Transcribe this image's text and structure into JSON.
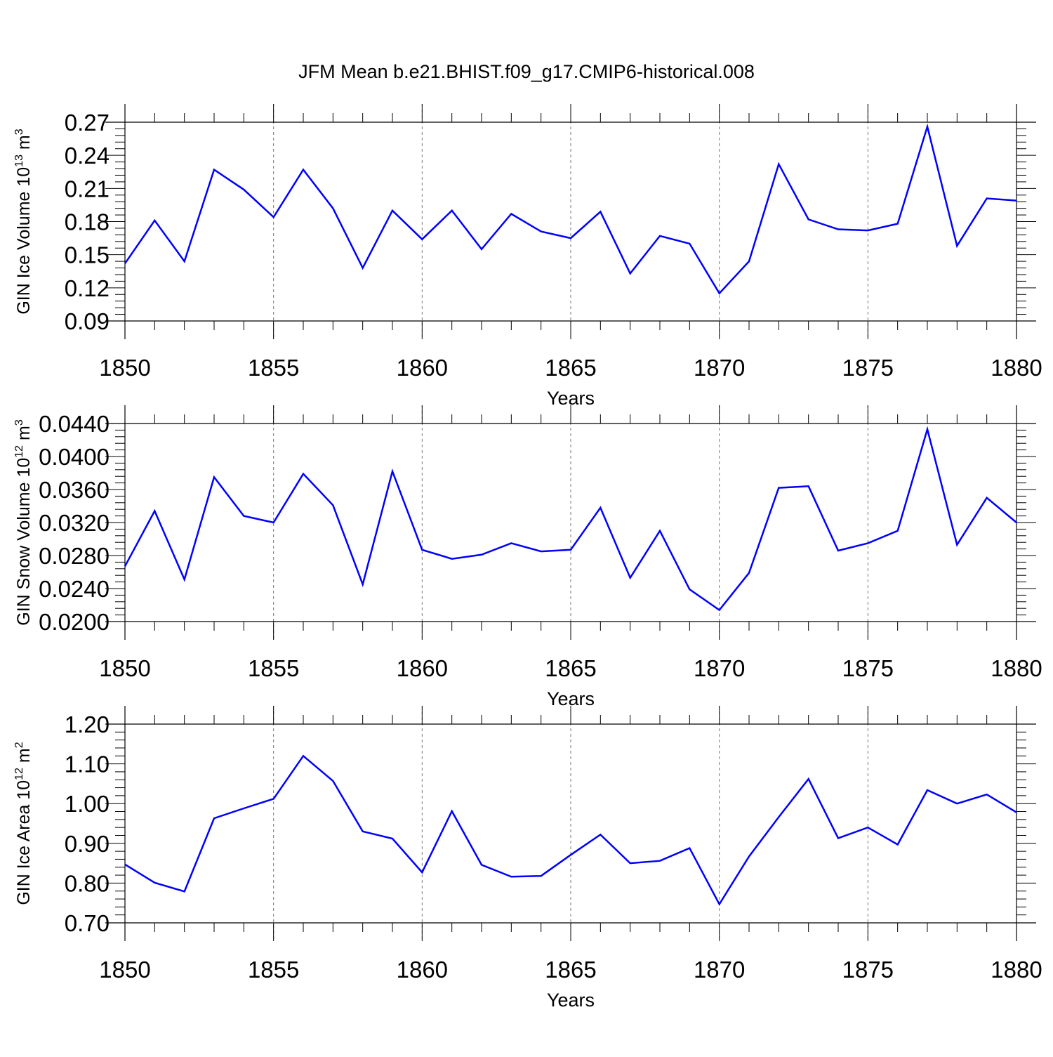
{
  "title": "JFM Mean b.e21.BHIST.f09_g17.CMIP6-historical.008",
  "line_color": "#0000ff",
  "chart_data": [
    {
      "type": "line",
      "ylabel": "GIN Ice Volume 10^13 m^3",
      "ylabel_main": "GIN Ice Volume 10",
      "ylabel_exp": "13",
      "ylabel_unit": " m",
      "ylabel_unit_exp": "3",
      "xlabel": "Years",
      "xlim": [
        1850,
        1880
      ],
      "ylim": [
        0.09,
        0.27
      ],
      "x_ticks": [
        "1850",
        "1855",
        "1860",
        "1865",
        "1870",
        "1875",
        "1880"
      ],
      "y_ticks": [
        "0.09",
        "0.12",
        "0.15",
        "0.18",
        "0.21",
        "0.24",
        "0.27"
      ],
      "grid": "vertical dashed at major x ticks",
      "x": [
        1850,
        1851,
        1852,
        1853,
        1854,
        1855,
        1856,
        1857,
        1858,
        1859,
        1860,
        1861,
        1862,
        1863,
        1864,
        1865,
        1866,
        1867,
        1868,
        1869,
        1870,
        1871,
        1872,
        1873,
        1874,
        1875,
        1876,
        1877,
        1878,
        1879,
        1880
      ],
      "values": [
        0.142,
        0.181,
        0.144,
        0.227,
        0.209,
        0.184,
        0.227,
        0.192,
        0.138,
        0.19,
        0.164,
        0.19,
        0.155,
        0.187,
        0.171,
        0.165,
        0.189,
        0.133,
        0.167,
        0.16,
        0.115,
        0.144,
        0.232,
        0.182,
        0.173,
        0.172,
        0.178,
        0.266,
        0.158,
        0.201,
        0.199
      ]
    },
    {
      "type": "line",
      "ylabel": "GIN Snow Volume 10^12 m^3",
      "ylabel_main": "GIN Snow Volume 10",
      "ylabel_exp": "12",
      "ylabel_unit": " m",
      "ylabel_unit_exp": "3",
      "xlabel": "Years",
      "xlim": [
        1850,
        1880
      ],
      "ylim": [
        0.02,
        0.044
      ],
      "x_ticks": [
        "1850",
        "1855",
        "1860",
        "1865",
        "1870",
        "1875",
        "1880"
      ],
      "y_ticks": [
        "0.0200",
        "0.0240",
        "0.0280",
        "0.0320",
        "0.0360",
        "0.0400",
        "0.0440"
      ],
      "grid": "vertical dashed at major x ticks",
      "x": [
        1850,
        1851,
        1852,
        1853,
        1854,
        1855,
        1856,
        1857,
        1858,
        1859,
        1860,
        1861,
        1862,
        1863,
        1864,
        1865,
        1866,
        1867,
        1868,
        1869,
        1870,
        1871,
        1872,
        1873,
        1874,
        1875,
        1876,
        1877,
        1878,
        1879,
        1880
      ],
      "values": [
        0.0267,
        0.0334,
        0.0251,
        0.0375,
        0.0328,
        0.032,
        0.0379,
        0.0341,
        0.0245,
        0.0382,
        0.0287,
        0.0276,
        0.0281,
        0.0295,
        0.0285,
        0.0287,
        0.0338,
        0.0253,
        0.031,
        0.0239,
        0.0214,
        0.0259,
        0.0362,
        0.0364,
        0.0286,
        0.0295,
        0.031,
        0.0433,
        0.0293,
        0.035,
        0.032
      ]
    },
    {
      "type": "line",
      "ylabel": "GIN Ice Area 10^12 m^2",
      "ylabel_main": "GIN Ice Area 10",
      "ylabel_exp": "12",
      "ylabel_unit": " m",
      "ylabel_unit_exp": "2",
      "xlabel": "Years",
      "xlim": [
        1850,
        1880
      ],
      "ylim": [
        0.7,
        1.2
      ],
      "x_ticks": [
        "1850",
        "1855",
        "1860",
        "1865",
        "1870",
        "1875",
        "1880"
      ],
      "y_ticks": [
        "0.70",
        "0.80",
        "0.90",
        "1.00",
        "1.10",
        "1.20"
      ],
      "grid": "vertical dashed at major x ticks",
      "x": [
        1850,
        1851,
        1852,
        1853,
        1854,
        1855,
        1856,
        1857,
        1858,
        1859,
        1860,
        1861,
        1862,
        1863,
        1864,
        1865,
        1866,
        1867,
        1868,
        1869,
        1870,
        1871,
        1872,
        1873,
        1874,
        1875,
        1876,
        1877,
        1878,
        1879,
        1880
      ],
      "values": [
        0.847,
        0.801,
        0.779,
        0.963,
        0.988,
        1.012,
        1.12,
        1.057,
        0.93,
        0.912,
        0.827,
        0.981,
        0.846,
        0.816,
        0.818,
        0.871,
        0.922,
        0.85,
        0.856,
        0.888,
        0.747,
        0.867,
        0.966,
        1.062,
        0.913,
        0.94,
        0.897,
        1.034,
        1.0,
        1.023,
        0.978
      ]
    }
  ]
}
